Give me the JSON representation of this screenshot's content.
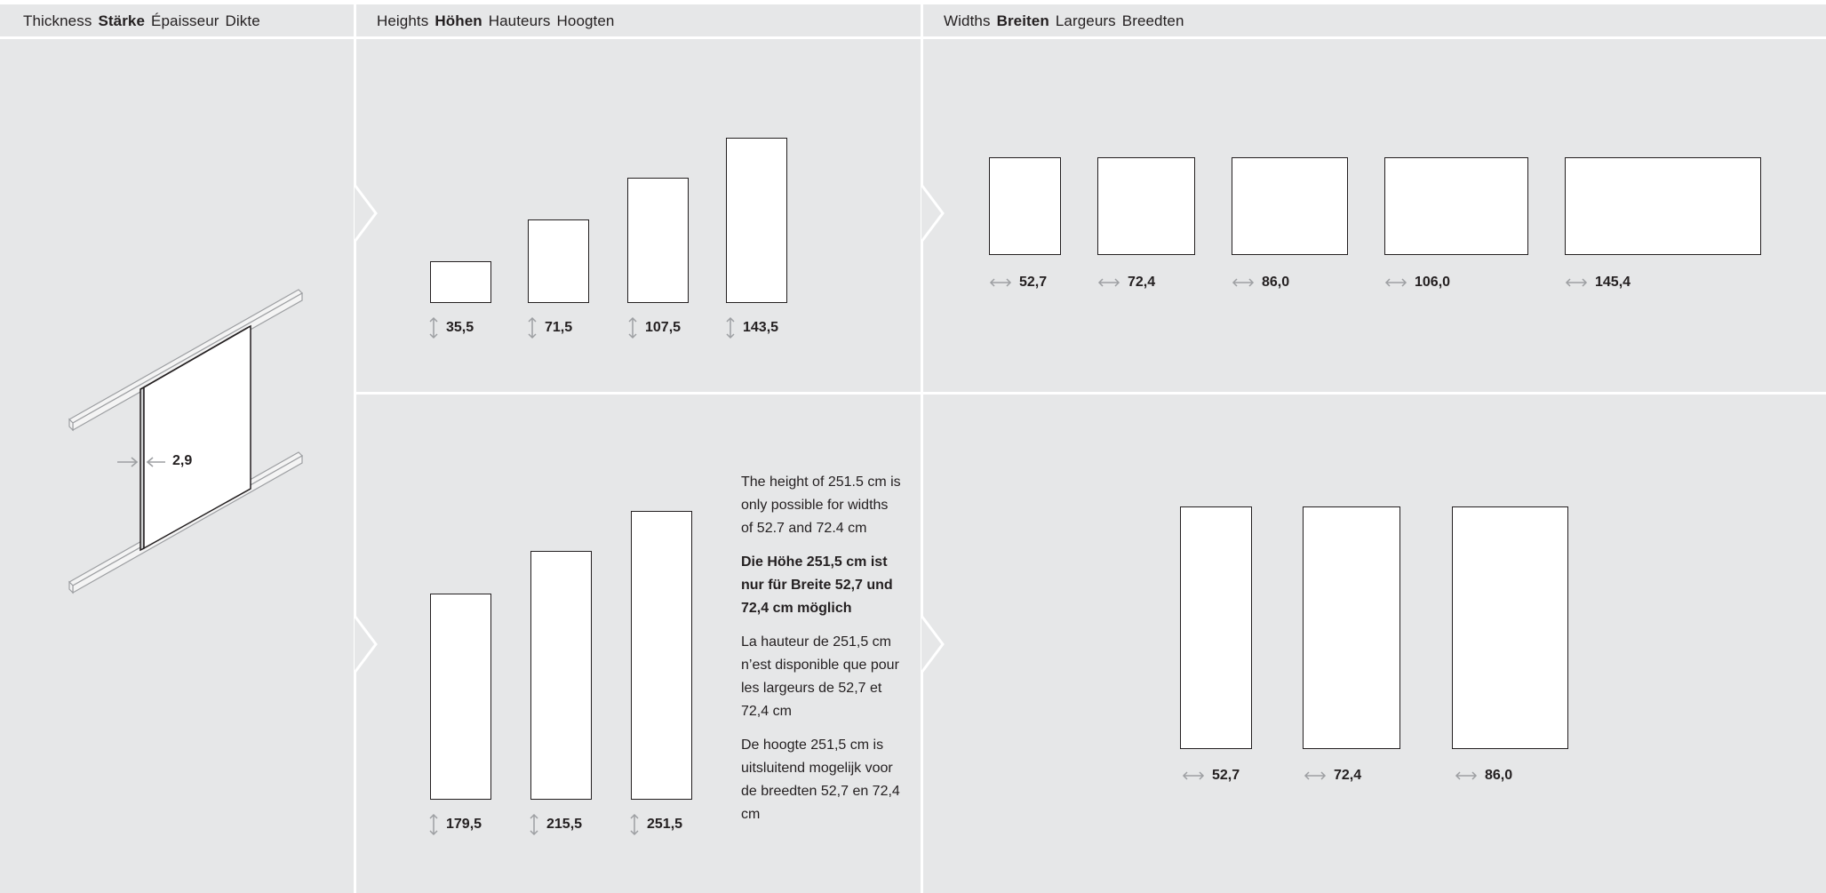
{
  "columns": [
    {
      "id": "thickness",
      "header": [
        "Thickness",
        "Stärke",
        "Épaisseur",
        "Dikte"
      ],
      "bold_index": 1
    },
    {
      "id": "heights",
      "header": [
        "Heights",
        "Höhen",
        "Hauteurs",
        "Hoogten"
      ],
      "bold_index": 1
    },
    {
      "id": "widths",
      "header": [
        "Widths",
        "Breiten",
        "Largeurs",
        "Breedten"
      ],
      "bold_index": 1
    }
  ],
  "thickness": {
    "value": "2,9"
  },
  "heights_top": [
    "35,5",
    "71,5",
    "107,5",
    "143,5"
  ],
  "heights_bottom": [
    "179,5",
    "215,5",
    "251,5"
  ],
  "widths_top": [
    "52,7",
    "72,4",
    "86,0",
    "106,0",
    "145,4"
  ],
  "widths_bottom": [
    "52,7",
    "72,4",
    "86,0"
  ],
  "note": {
    "en": "The height of 251.5 cm is only possible for widths of 52.7 and 72.4 cm",
    "de": "Die Höhe 251,5 cm ist nur für Breite 52,7 und 72,4 cm möglich",
    "fr": "La hauteur de 251,5 cm n’est disponible que pour les largeurs de 52,7 et 72,4 cm",
    "nl": "De hoogte 251,5 cm is uitsluitend mogelijk voor de breedten 52,7 en 72,4 cm"
  },
  "colors": {
    "background": "#e6e7e8",
    "divider": "#ffffff",
    "ink": "#231f20",
    "muted": "#9d9fa2"
  }
}
